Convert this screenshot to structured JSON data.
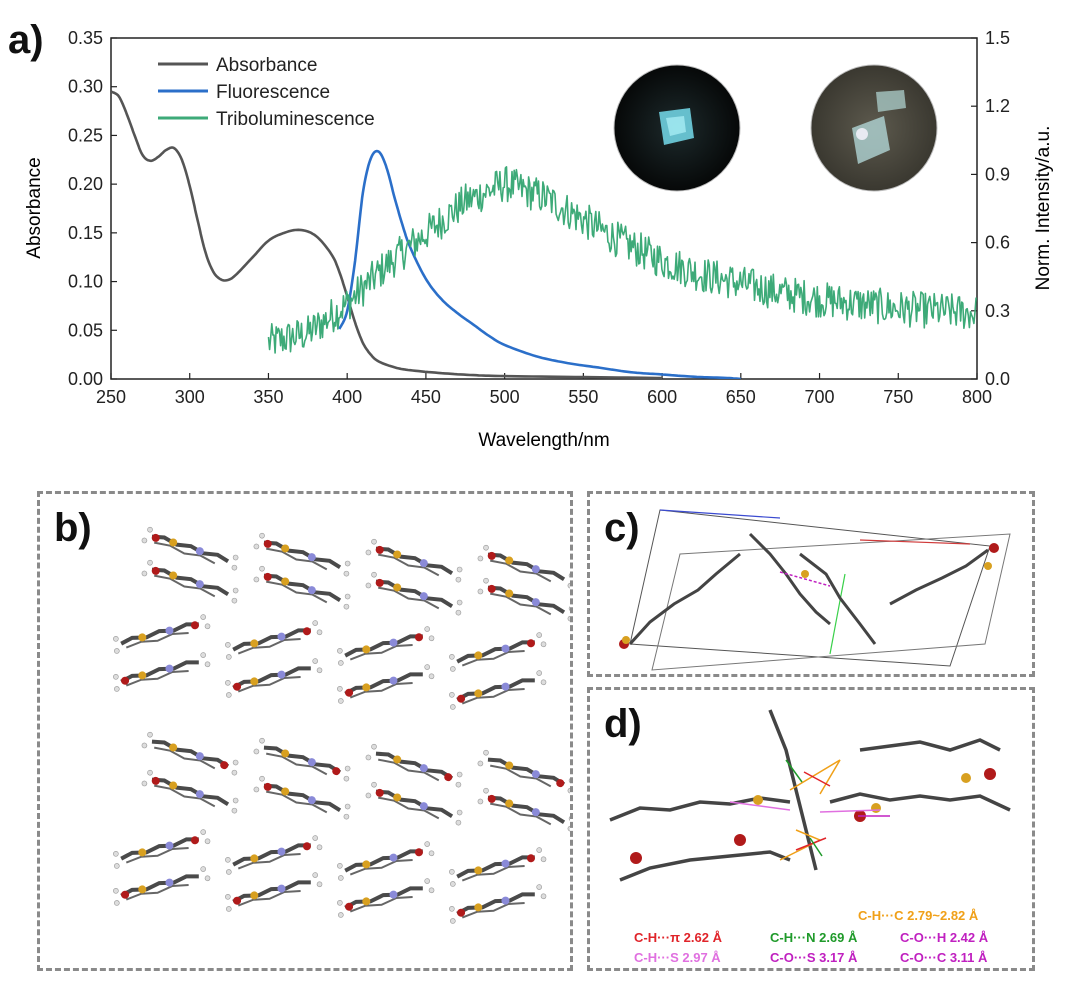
{
  "panel_labels": {
    "a": "a)",
    "b": "b)",
    "c": "c)",
    "d": "d)"
  },
  "chart_data": {
    "type": "line",
    "xlabel": "Wavelength/nm",
    "ylabel": "Absorbance",
    "y2label": "Norm. Intensity/a.u.",
    "xlim": [
      250,
      800
    ],
    "ylim": [
      0,
      0.35
    ],
    "y2lim": [
      0,
      1.5
    ],
    "xticks": [
      250,
      300,
      350,
      400,
      450,
      500,
      550,
      600,
      650,
      700,
      750,
      800
    ],
    "yticks": [
      "0.00",
      "0.05",
      "0.10",
      "0.15",
      "0.20",
      "0.25",
      "0.30",
      "0.35"
    ],
    "y2ticks": [
      "0.0",
      "0.3",
      "0.6",
      "0.9",
      "1.2",
      "1.5"
    ],
    "legend_position": "top-left",
    "series": [
      {
        "name": "Absorbance",
        "axis": "left",
        "color": "#555555",
        "x": [
          250,
          255,
          260,
          265,
          270,
          275,
          280,
          285,
          290,
          295,
          300,
          305,
          310,
          315,
          320,
          325,
          330,
          340,
          350,
          360,
          370,
          380,
          390,
          395,
          400,
          405,
          410,
          415,
          420,
          430,
          440,
          460,
          480,
          500,
          550,
          600
        ],
        "y": [
          0.295,
          0.29,
          0.272,
          0.25,
          0.23,
          0.224,
          0.228,
          0.235,
          0.237,
          0.225,
          0.198,
          0.163,
          0.13,
          0.11,
          0.102,
          0.102,
          0.108,
          0.125,
          0.142,
          0.15,
          0.153,
          0.147,
          0.128,
          0.11,
          0.085,
          0.058,
          0.037,
          0.025,
          0.018,
          0.012,
          0.009,
          0.006,
          0.004,
          0.003,
          0.002,
          0.001
        ]
      },
      {
        "name": "Fluorescence",
        "axis": "right",
        "color": "#2b6fc9",
        "x": [
          395,
          400,
          405,
          410,
          415,
          420,
          425,
          430,
          435,
          440,
          450,
          460,
          470,
          480,
          490,
          500,
          520,
          540,
          560,
          580,
          600,
          620,
          640,
          650
        ],
        "y": [
          0.22,
          0.3,
          0.52,
          0.82,
          0.97,
          1.0,
          0.93,
          0.8,
          0.68,
          0.58,
          0.44,
          0.35,
          0.29,
          0.24,
          0.19,
          0.15,
          0.1,
          0.07,
          0.05,
          0.03,
          0.02,
          0.01,
          0.005,
          0.0
        ]
      },
      {
        "name": "Triboluminescence",
        "axis": "right",
        "color": "#3daa78",
        "x": [
          350,
          375,
          400,
          425,
          450,
          475,
          500,
          525,
          550,
          575,
          600,
          625,
          650,
          675,
          700,
          725,
          750,
          775,
          800
        ],
        "y": [
          0.16,
          0.2,
          0.33,
          0.5,
          0.64,
          0.78,
          0.86,
          0.8,
          0.7,
          0.6,
          0.52,
          0.46,
          0.42,
          0.38,
          0.35,
          0.33,
          0.31,
          0.3,
          0.29
        ]
      }
    ]
  },
  "panel_d": {
    "interactions": [
      {
        "label": "C-H···C",
        "value": "2.79~2.82 Å",
        "color": "#f0a018"
      },
      {
        "label": "C-H···π",
        "value": "2.62 Å",
        "color": "#e0242a"
      },
      {
        "label": "C-H···N",
        "value": "2.69 Å",
        "color": "#1f9a2a"
      },
      {
        "label": "C-O···H",
        "value": "2.42 Å",
        "color": "#c020c0"
      },
      {
        "label": "C-H···S",
        "value": "2.97 Å",
        "color": "#e070e0"
      },
      {
        "label": "C-O···S",
        "value": "3.17 Å",
        "color": "#c020c0"
      },
      {
        "label": "C-O···C",
        "value": "3.11 Å",
        "color": "#c020c0"
      }
    ]
  }
}
